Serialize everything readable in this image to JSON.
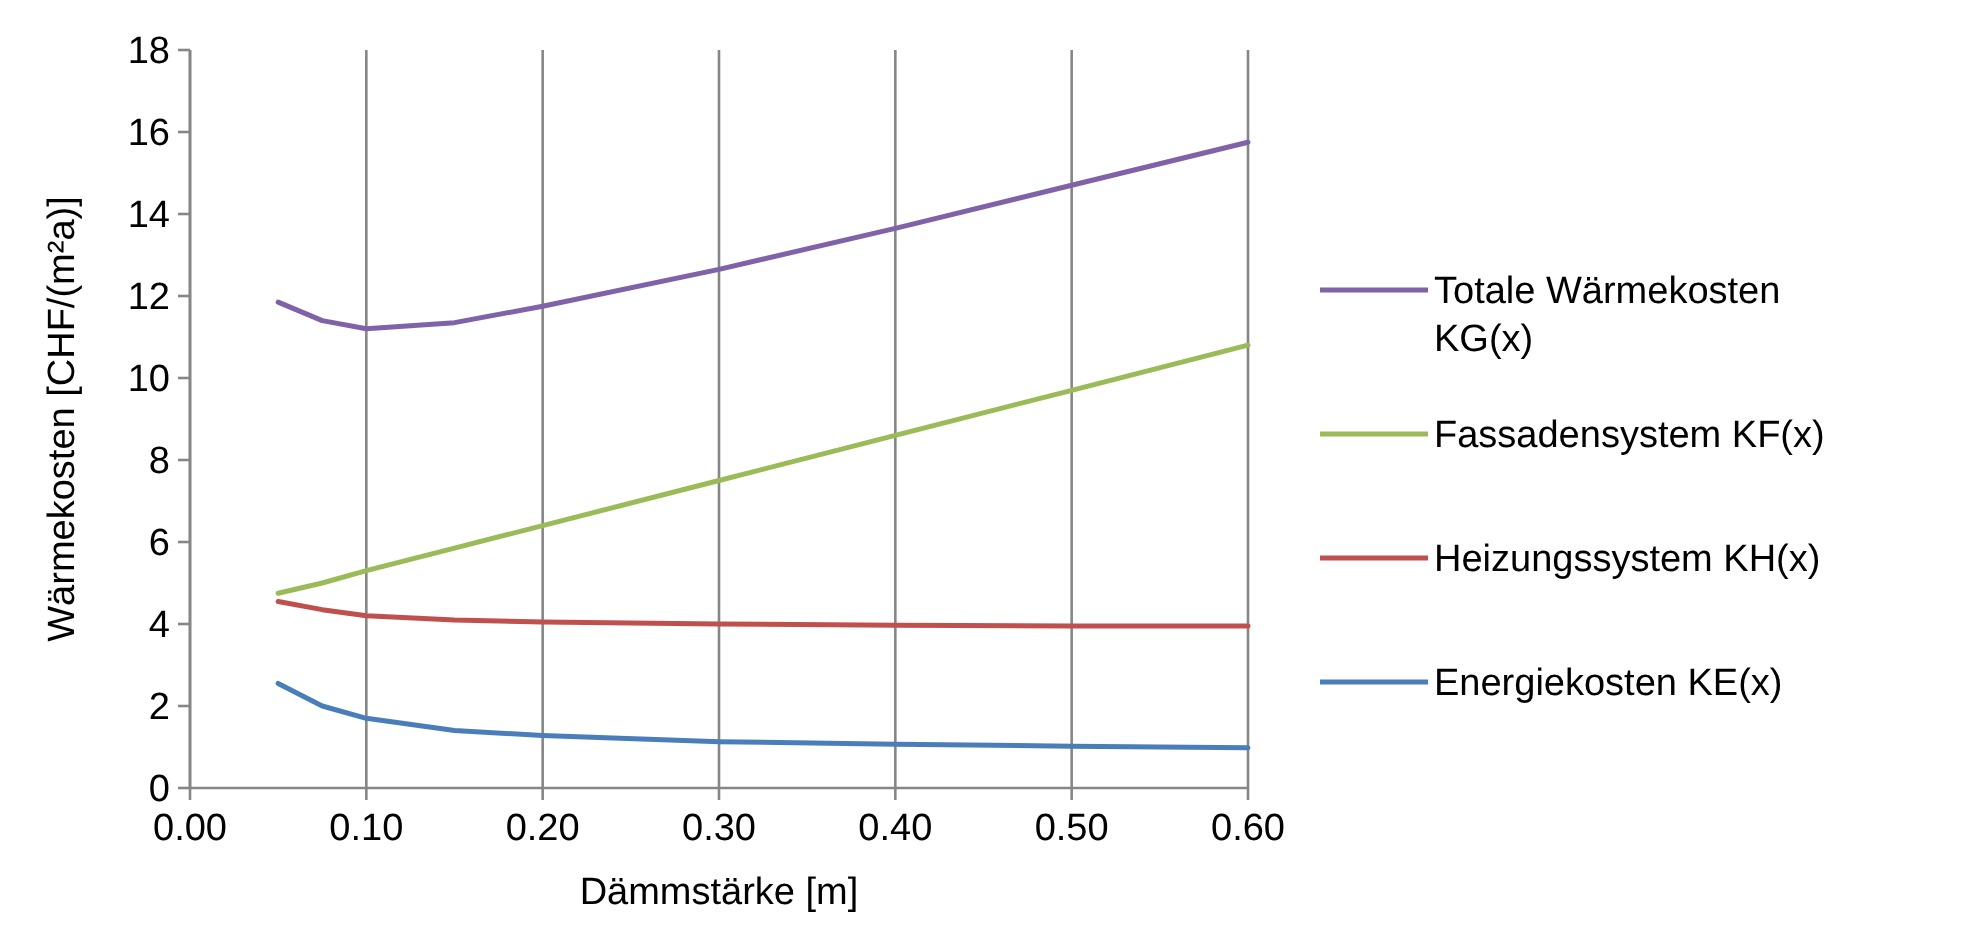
{
  "chart_data": {
    "type": "line",
    "xlabel": "Dämmstärke [m]",
    "ylabel": "Wärmekosten [CHF/(m²a)]",
    "x": [
      0.05,
      0.075,
      0.1,
      0.15,
      0.2,
      0.3,
      0.4,
      0.5,
      0.6
    ],
    "xlim": [
      0,
      0.6
    ],
    "xticks": [
      {
        "value": 0,
        "label": "0.00"
      },
      {
        "value": 0.1,
        "label": "0.10"
      },
      {
        "value": 0.2,
        "label": "0.20"
      },
      {
        "value": 0.3,
        "label": "0.30"
      },
      {
        "value": 0.4,
        "label": "0.40"
      },
      {
        "value": 0.5,
        "label": "0.50"
      },
      {
        "value": 0.6,
        "label": "0.60"
      }
    ],
    "ylim": [
      0,
      18
    ],
    "yticks": [
      0,
      2,
      4,
      6,
      8,
      10,
      12,
      14,
      16,
      18
    ],
    "grid": "x",
    "legend": "right",
    "marker": "none",
    "line_style": "solid",
    "series": [
      {
        "name": "Totale Wärmekosten KG(x)",
        "color": "#7f62a8",
        "values": [
          11.85,
          11.4,
          11.2,
          11.35,
          11.75,
          12.65,
          13.65,
          14.7,
          15.75
        ]
      },
      {
        "name": "Fassadensystem KF(x)",
        "color": "#9bbb59",
        "values": [
          4.75,
          5.0,
          5.3,
          5.85,
          6.4,
          7.5,
          8.6,
          9.7,
          10.8
        ]
      },
      {
        "name": "Heizungssystem KH(x)",
        "color": "#c0504d",
        "values": [
          4.55,
          4.35,
          4.2,
          4.1,
          4.05,
          4.0,
          3.97,
          3.95,
          3.95
        ]
      },
      {
        "name": "Energiekosten KE(x)",
        "color": "#4a7ebb",
        "values": [
          2.55,
          2.0,
          1.7,
          1.4,
          1.28,
          1.13,
          1.07,
          1.02,
          0.98
        ]
      }
    ]
  }
}
